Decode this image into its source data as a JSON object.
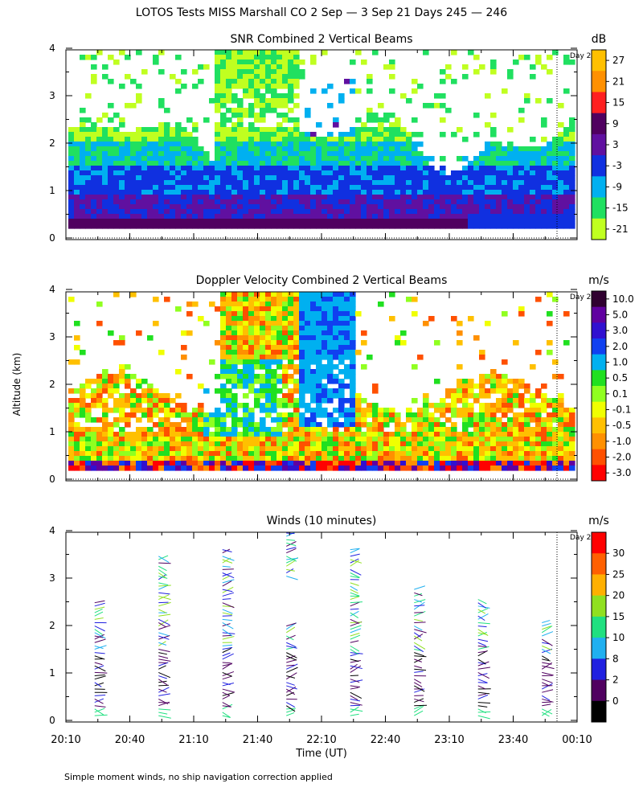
{
  "page": {
    "title": "LOTOS Tests MISS Marshall CO   2 Sep —  3 Sep 21 Days 245 — 246",
    "footnote": "Simple moment winds, no ship navigation correction applied",
    "ylabel": "Altitude (km)",
    "xlabel": "Time (UT)",
    "day_marker": "Day 2"
  },
  "chart_data": [
    {
      "type": "heatmap",
      "title": "SNR Combined 2 Vertical Beams",
      "unit": "dB",
      "x_ticks": [
        "20:10",
        "20:40",
        "21:10",
        "21:40",
        "22:10",
        "22:40",
        "23:10",
        "23:40",
        "00:10"
      ],
      "y_ticks": [
        "0",
        "1",
        "2",
        "3",
        "4"
      ],
      "ylim": [
        0,
        4
      ],
      "colorbar": {
        "labels": [
          "27",
          "21",
          "15",
          "9",
          "3",
          "-3",
          "-9",
          "-15",
          "-21"
        ],
        "colors": [
          "#ffc000",
          "#ff9000",
          "#ff2020",
          "#500060",
          "#6010a0",
          "#1030e0",
          "#00b0f0",
          "#20e060",
          "#c0ff20"
        ]
      }
    },
    {
      "type": "heatmap",
      "title": "Doppler Velocity Combined 2 Vertical Beams",
      "unit": "m/s",
      "x_ticks": [
        "20:10",
        "20:40",
        "21:10",
        "21:40",
        "22:10",
        "22:40",
        "23:10",
        "23:40",
        "00:10"
      ],
      "y_ticks": [
        "0",
        "1",
        "2",
        "3",
        "4"
      ],
      "ylim": [
        0,
        4
      ],
      "colorbar": {
        "labels": [
          "10.0",
          "5.0",
          "3.0",
          "2.0",
          "1.0",
          "0.5",
          "0.1",
          "-0.1",
          "-0.5",
          "-1.0",
          "-2.0",
          "-3.0"
        ],
        "colors": [
          "#300030",
          "#6000a0",
          "#3010d0",
          "#1040f0",
          "#00b0f0",
          "#20e020",
          "#90ff20",
          "#f0ff00",
          "#ffc000",
          "#ff9000",
          "#ff5000",
          "#ff0000"
        ]
      }
    },
    {
      "type": "scatter",
      "title": "Winds (10 minutes)",
      "unit": "m/s",
      "x_ticks": [
        "20:10",
        "20:40",
        "21:10",
        "21:40",
        "22:10",
        "22:40",
        "23:10",
        "23:40",
        "00:10"
      ],
      "y_ticks": [
        "0",
        "1",
        "2",
        "3",
        "4"
      ],
      "ylim": [
        0,
        4
      ],
      "profile_times": [
        "20:25",
        "20:55",
        "21:25",
        "21:55",
        "22:25",
        "22:55",
        "23:25",
        "23:55"
      ],
      "colorbar": {
        "labels": [
          "30",
          "25",
          "20",
          "15",
          "10",
          "8",
          "2",
          "0"
        ],
        "colors": [
          "#ff0000",
          "#ff6000",
          "#ffb000",
          "#90e020",
          "#20e080",
          "#20b0f0",
          "#2020e0",
          "#500060",
          "#000000"
        ]
      }
    }
  ]
}
